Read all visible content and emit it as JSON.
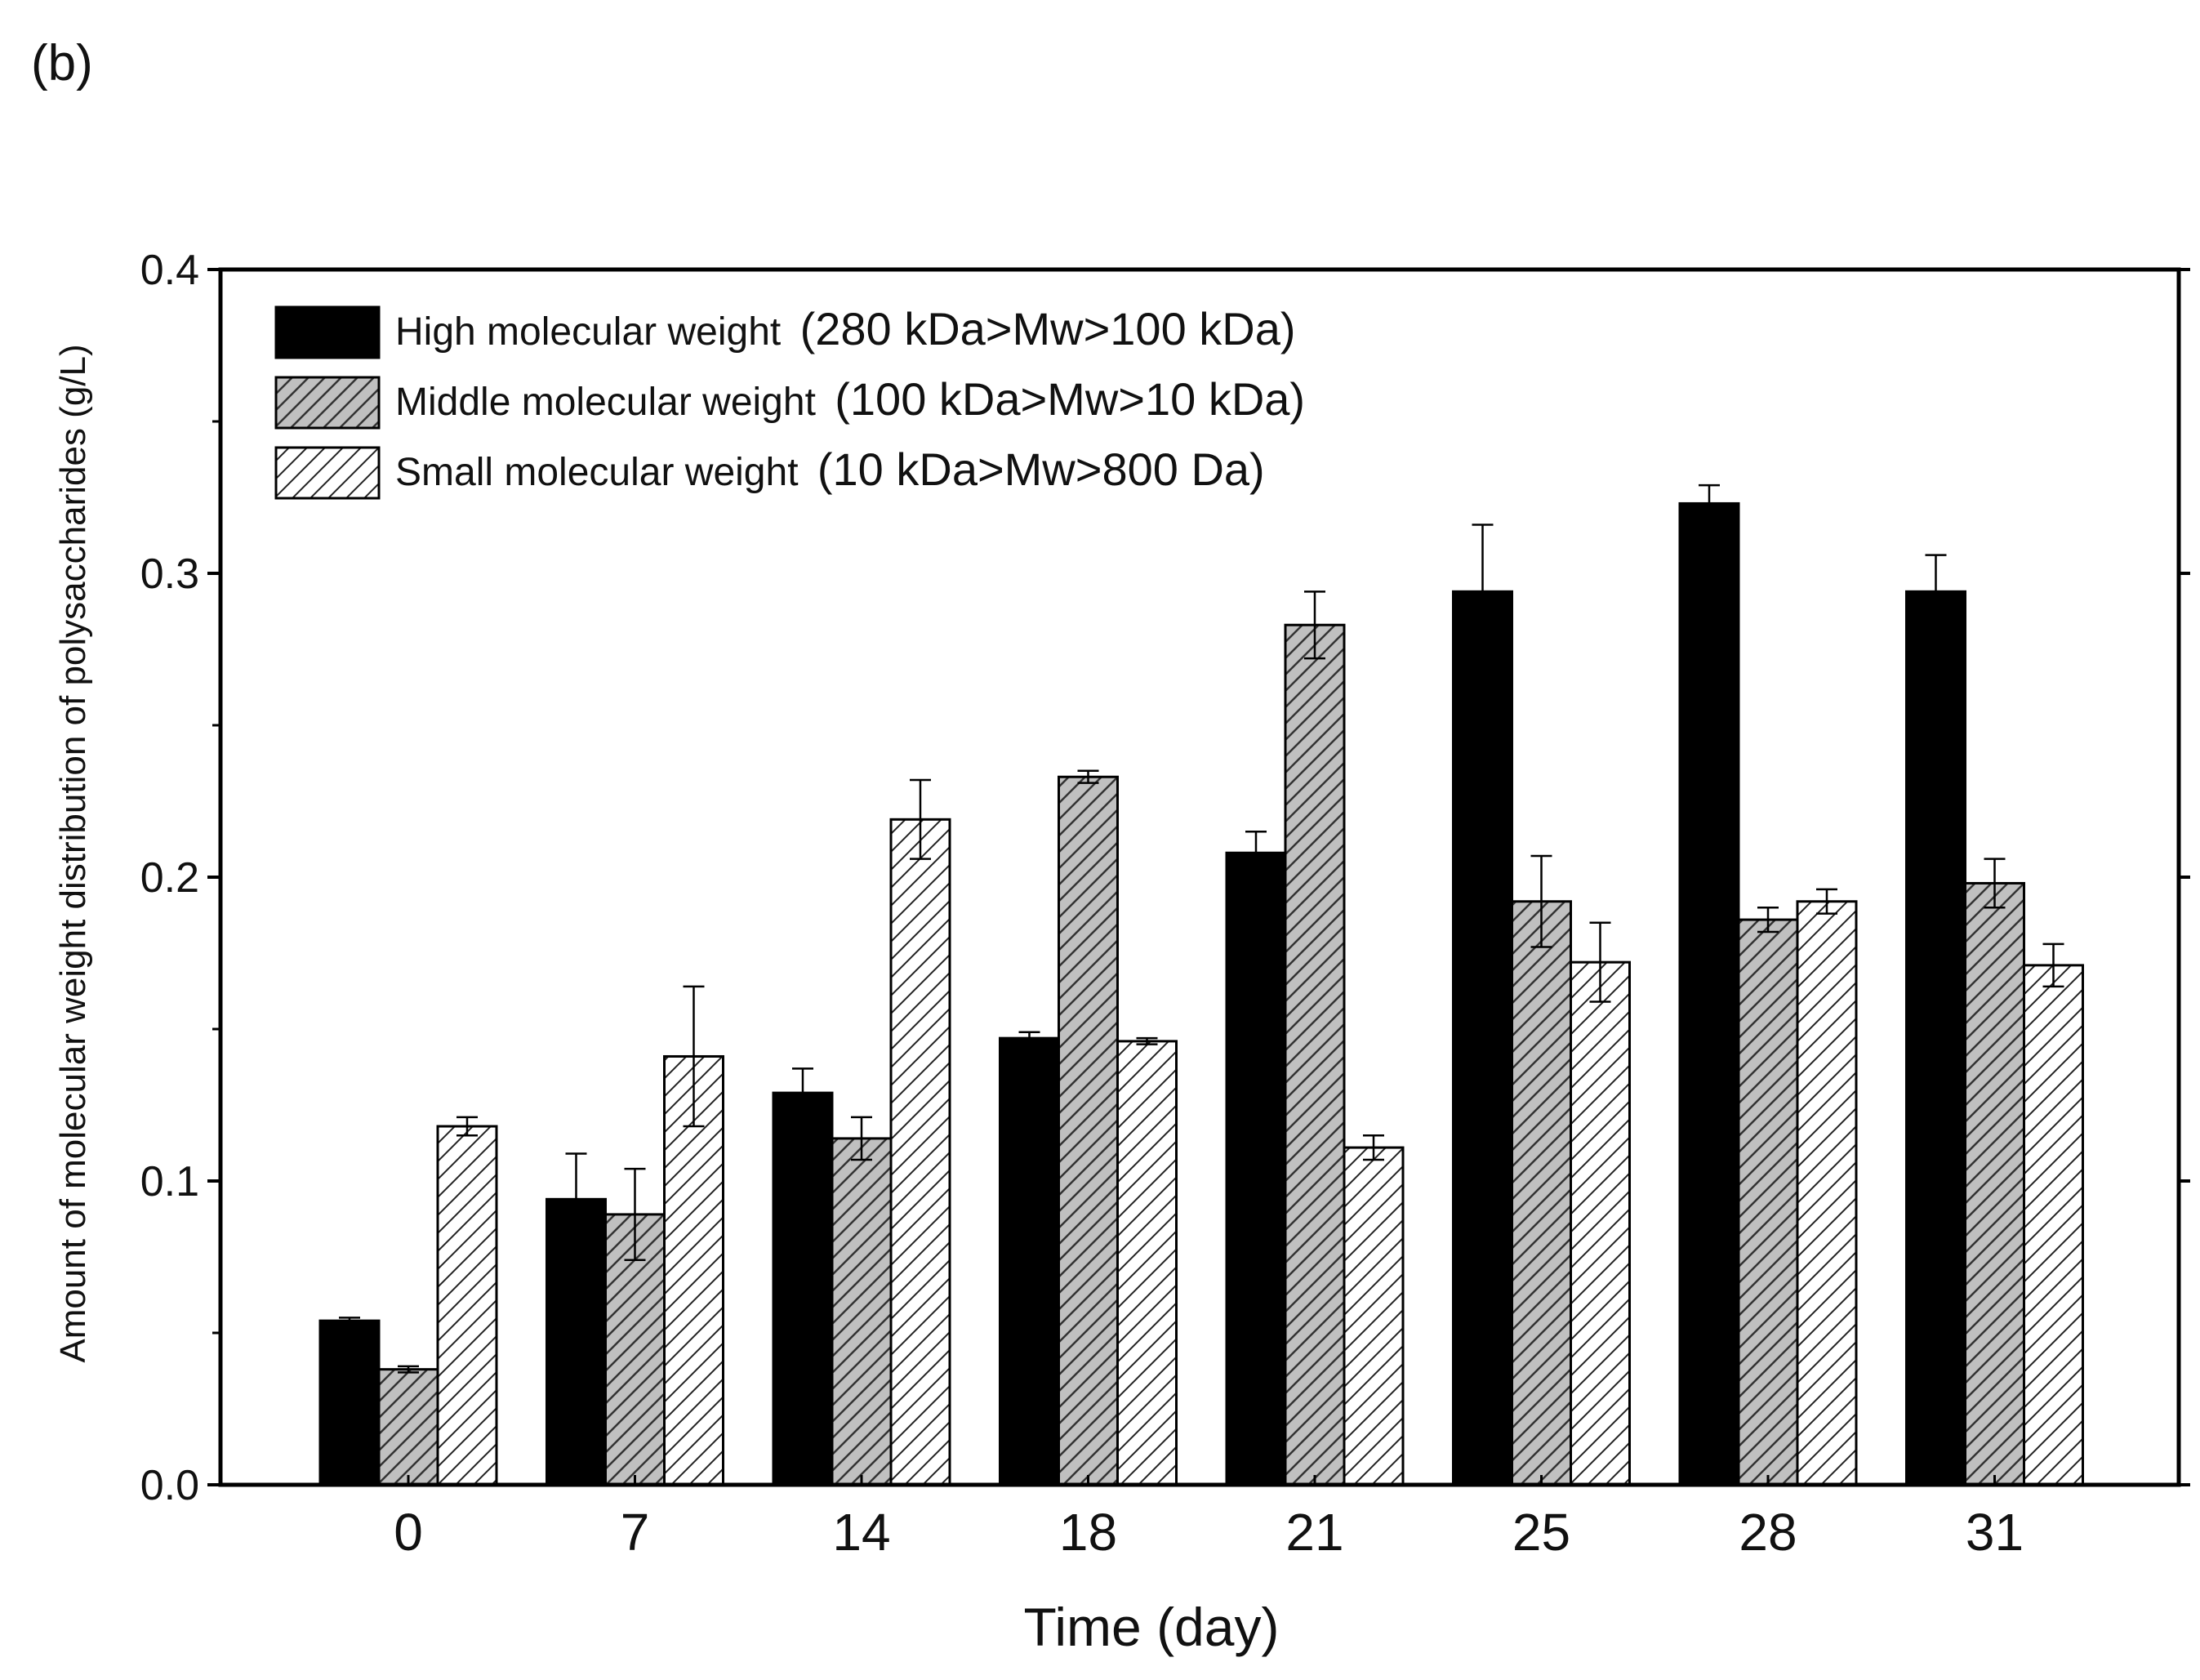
{
  "panel_label": "(b)",
  "chart_data": {
    "type": "bar",
    "title": "",
    "xlabel": "Time (day)",
    "ylabel": "Amount of molecular weight distribution of polysaccharides (g/L)",
    "ylim": [
      0,
      0.4
    ],
    "yticks": [
      "0.0",
      "0.1",
      "0.2",
      "0.3",
      "0.4"
    ],
    "categories": [
      "0",
      "7",
      "14",
      "18",
      "21",
      "25",
      "28",
      "31"
    ],
    "legend_position": "top-left",
    "series": [
      {
        "name": "High molecular weight",
        "range": "(280 kDa>Mw>100 kDa)",
        "style": "solid",
        "color": "#000000",
        "values": [
          0.054,
          0.094,
          0.129,
          0.147,
          0.208,
          0.294,
          0.323,
          0.294
        ],
        "errors": [
          0.001,
          0.015,
          0.008,
          0.002,
          0.007,
          0.022,
          0.006,
          0.012
        ]
      },
      {
        "name": "Middle molecular weight",
        "range": "(100 kDa>Mw>10 kDa)",
        "style": "hatch-gray",
        "color": "#c0c0c0",
        "values": [
          0.038,
          0.089,
          0.114,
          0.233,
          0.283,
          0.192,
          0.186,
          0.198
        ],
        "errors": [
          0.001,
          0.015,
          0.007,
          0.002,
          0.011,
          0.015,
          0.004,
          0.008
        ]
      },
      {
        "name": "Small molecular weight",
        "range": "(10 kDa>Mw>800 Da)",
        "style": "hatch-white",
        "color": "#ffffff",
        "values": [
          0.118,
          0.141,
          0.219,
          0.146,
          0.111,
          0.172,
          0.192,
          0.171
        ],
        "errors": [
          0.003,
          0.023,
          0.013,
          0.001,
          0.004,
          0.013,
          0.004,
          0.007
        ]
      }
    ]
  }
}
